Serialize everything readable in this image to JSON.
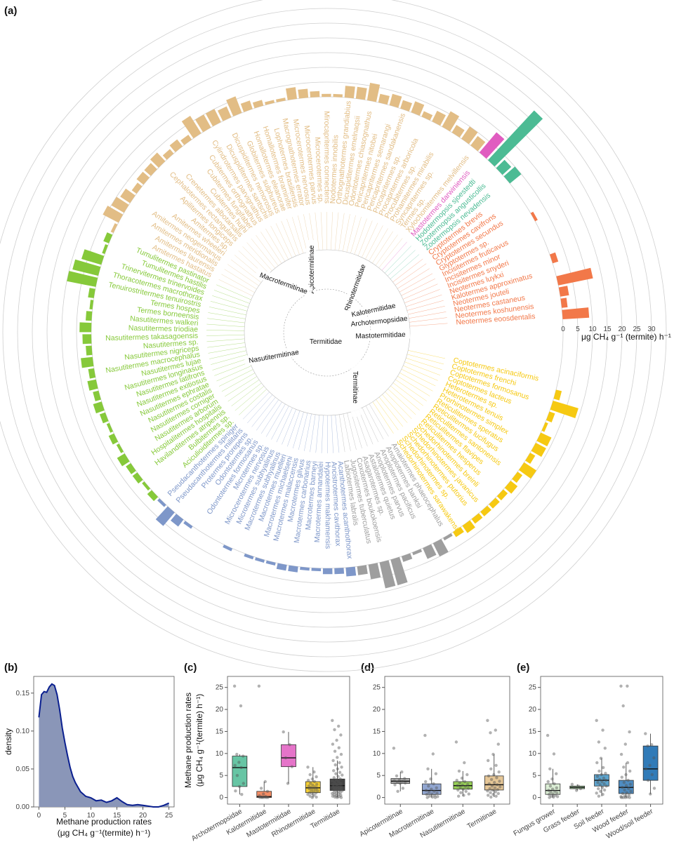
{
  "panels": {
    "a": "(a)",
    "b": "(b)",
    "c": "(c)",
    "d": "(d)",
    "e": "(e)"
  },
  "colors": {
    "Amaiteliinae_grey": "#9e9e9e",
    "Rhinotermitidae": "#f6c912",
    "Kalotermitidae": "#f27849",
    "Hodotermitidae": "#4cbb94",
    "Mastotermitidae": "#e05cc0",
    "Termitinae": "#e2bd85",
    "Nasutitermitinae": "#86c93a",
    "Macrotermitinae": "#7e97c9",
    "density_fill": "#8a96b8",
    "density_line": "#0a1f8f"
  },
  "circular": {
    "radial_axis_ticks": [
      "0",
      "5",
      "10",
      "15",
      "20",
      "25",
      "30"
    ],
    "radial_axis_label": "μg CH₄ g⁻¹ (termite) h⁻¹",
    "family_labels": [
      "Apicotermitinae",
      "Macrotermitinae",
      "Rhinotermitidae",
      "Kalotermitidae",
      "Archotermopsidae",
      "Mastotermitidae",
      "Termitidae",
      "Nasutitermitinae",
      "Termitinae"
    ],
    "groups": [
      {
        "key": "Kalotermitidae",
        "color": "#f27849",
        "species": [
          "Neotermes eoosdentalis",
          "Neotermes koshunensis",
          "Neotermes castaneus",
          "Neotermes jouteli",
          "Kalotermes approximatus",
          "Neotermes luykxi",
          "Incisitermes snyderi",
          "Incisitermes minor",
          "Incisitermes fruticavus",
          "Glyptotermes sp.",
          "Cryptotermes secundus",
          "Cryptotermes cavifrons",
          "Cryptotermes brevis"
        ],
        "values": [
          9,
          2,
          3,
          12,
          0,
          2,
          0,
          0,
          0,
          1,
          0,
          0,
          0
        ]
      },
      {
        "key": "Hodotermitidae",
        "color": "#4cbb94",
        "species": [
          "Zootermopsis nevadensis",
          "Zootermopsis angusticollis",
          "Hodotermopsis sjoestedti"
        ],
        "values": [
          5,
          4,
          23
        ]
      },
      {
        "key": "Mastotermitidae",
        "color": "#e05cc0",
        "species": [
          "Mastotermes darwiniensis"
        ],
        "values": [
          9
        ]
      },
      {
        "key": "Termitinae",
        "color": "#e2bd85",
        "species": [
          "Xylochomitermes melvillensis",
          "Termes sp.",
          "Syncapritermes sp.",
          "Prohamitermes mirabilis",
          "Procubitermes sp.",
          "Procapritermes arboricola",
          "Procapritermes sp.",
          "Pericapritermes sandakanensis",
          "Pericapritermes semarangi",
          "Pericapritermes nitobei",
          "Odontotermes chiasognathus",
          "Dicuspiditermes emelnaqsii",
          "Orthognathotermes grandiabius",
          "Nodotermes innobilis",
          "Mirocapritermes connectens",
          "Microcerotermes sp.",
          "Microcerotermes parvus",
          "Microcerotermes nervosus",
          "Macrognathotermes errator",
          "Lophotermes brasiliensis",
          "Homallotermes foraminifer",
          "Homallotermes eleanorae",
          "Globitermes sulphureus",
          "Dicuspiditermes nemorosus",
          "Dicuspiditermes santschii",
          "Cylindrotermes parvignathus",
          "Cubitermes orthognathus",
          "Cubitermes fungifaber",
          "Cubitermes hujhi",
          "Crenetermes albotarsalis",
          "Cephalotermes rectangularis",
          "Apilitermes longiceps",
          "Amitermes sp.",
          "Amitermes wheeleri",
          "Amitermes neogermanus",
          "Amitermes meridionalis",
          "Amitermes laurensis",
          "Amitermes hastatus"
        ],
        "values": [
          4,
          5,
          3,
          6,
          4,
          2,
          4,
          3,
          4,
          3,
          6,
          4,
          4,
          1,
          1,
          2,
          3,
          4,
          1,
          1,
          2,
          3,
          6,
          4,
          5,
          5,
          7,
          2,
          3,
          2,
          4,
          3,
          3,
          2,
          4,
          5,
          6,
          1
        ]
      },
      {
        "key": "Nasutitermitinae",
        "color": "#86c93a",
        "species": [
          "Tumulitermes pastinator",
          "Tumulitermes hastilis",
          "Trinervitermes trinervoides",
          "Thoracotermes macrothorax",
          "Tenuirostritermes tenuirostris",
          "Termes hospes",
          "Termes borneensis",
          "Nasutitermes walkeri",
          "Nasutitermes triodiae",
          "Nasutitermes takasagoensis",
          "Nasutitermes sp.",
          "Nasutitermes nigriceps",
          "Nasutitermes macrocephalus",
          "Nasutitermes lujae",
          "Nasutitermes longinasus",
          "Nasutitermes latifrons",
          "Nasutitermes exitiosus",
          "Nasutitermes ephratae",
          "Nasutitermes costalis",
          "Nasutitermes corniger",
          "Nasutitermes arborum",
          "Hospitalitermes hospitalis",
          "Havilanditermes atripennis",
          "Bulbitermes sp.",
          "Aciculioiditermes sp."
        ],
        "values": [
          2,
          1,
          7,
          9,
          10,
          2,
          1,
          2,
          4,
          3,
          2,
          4,
          2,
          3,
          2,
          3,
          2,
          1,
          2,
          1,
          3,
          2,
          2,
          1,
          2
        ]
      },
      {
        "key": "Macrotermitinae",
        "color": "#7e97c9",
        "species": [
          "Pseudacanthotermes spiniger",
          "Pseudacanthotermes militaris",
          "Protermes prorepens",
          "Odontotermes sp.",
          "Odontotermes formosanus",
          "Microtermes sp.",
          "Microcerotermes nervosus",
          "Microtermes subhyalinus",
          "Macrotermes subhyalinus",
          "Macrotermes muelleri",
          "Macrotermes michaelseni",
          "Macrotermes malaccensis",
          "Macrotermes gilvus",
          "Macrotermes carbonarius",
          "Macrotermes barneyi",
          "Macrotermes annandalei",
          "Hypotermes makhamensis",
          "Ancistrotermes cavithorax",
          "Acanthotermes acanthothorax"
        ],
        "values": [
          1,
          6,
          3,
          1,
          0,
          0,
          0,
          1,
          0,
          1,
          1,
          1,
          2,
          2,
          1,
          1,
          2,
          2,
          3
        ]
      },
      {
        "key": "Apicotermitinae",
        "color": "#9e9e9e",
        "species": [
          "Labiotermes labralis",
          "Jugositermes tuberculatus",
          "Coxotermes boukokoensis",
          "Asagarotermes sp.",
          "Astalotermes quietus",
          "Anoplotermes parvus",
          "Anoplotermes pacificus",
          "Anoplotermes banksi",
          "Amaiotermes phaeocephalus"
        ],
        "values": [
          3,
          5,
          9,
          9,
          2,
          1,
          4,
          5,
          1
        ]
      },
      {
        "key": "Rhinotermitidae",
        "color": "#f6c912",
        "species": [
          "Schedorhinotermes sarawakensis",
          "Schedorhinotermes sp.",
          "Schedorhinotermes putorius",
          "Schedorhinotermes javanicus",
          "Schedorhinotermes breinli",
          "Reticulitermes hesperus",
          "Reticulitermes flavipes",
          "Reticulitermes santonensis",
          "Reticulitermes lucifugus",
          "Reticulitermes speratus",
          "Prorhinotermes simplex",
          "Heterotermes tenuis",
          "Heterotermes sp.",
          "Coptotermes lacteus",
          "Coptotermes formosanus",
          "Coptotermes frenchi",
          "Coptotermes acinaciformis"
        ],
        "values": [
          2,
          3,
          2,
          2,
          2,
          2,
          3,
          2,
          5,
          2,
          4,
          4,
          1,
          2,
          9,
          2,
          0
        ]
      }
    ]
  },
  "chart_data": [
    {
      "panel": "b",
      "type": "area",
      "xlabel": "Methane production rates",
      "xlabel2": "(μg CH₄ g⁻¹(termite) h⁻¹)",
      "ylabel": "density",
      "xticks": [
        "0",
        "5",
        "10",
        "15",
        "20",
        "25"
      ],
      "yticks": [
        "0.00",
        "0.05",
        "0.10",
        "0.15"
      ],
      "xlim": [
        -1,
        26
      ],
      "ylim": [
        0,
        0.172
      ],
      "x": [
        0,
        0.5,
        1,
        1.5,
        2,
        2.5,
        3,
        3.5,
        4,
        4.5,
        5,
        5.5,
        6,
        6.5,
        7,
        8,
        9,
        10,
        11,
        12,
        13,
        14,
        15,
        16,
        17,
        18,
        19,
        20,
        21,
        22,
        23,
        24,
        25
      ],
      "y": [
        0.118,
        0.148,
        0.152,
        0.151,
        0.158,
        0.162,
        0.16,
        0.148,
        0.128,
        0.104,
        0.085,
        0.068,
        0.052,
        0.04,
        0.032,
        0.02,
        0.014,
        0.012,
        0.008,
        0.009,
        0.006,
        0.008,
        0.012,
        0.007,
        0.003,
        0.002,
        0.003,
        0.002,
        0.001,
        0.0,
        0.0,
        0.002,
        0.005
      ]
    },
    {
      "panel": "c",
      "type": "box",
      "ylabel": "Methane production rates",
      "ylabel2": "(μg CH₄ g⁻¹(termite) h⁻¹)",
      "ylim": [
        -1.5,
        27.5
      ],
      "yticks": [
        "0",
        "5",
        "10",
        "15",
        "20",
        "25"
      ],
      "categories": [
        "Archotermopsidae",
        "Kalotermitidae",
        "Mastotermitidae",
        "Rhinotermitidae",
        "Termitidae"
      ],
      "colors": [
        "#4cbb94",
        "#f27849",
        "#e05cc0",
        "#f6c912",
        "#222222"
      ],
      "boxes": [
        {
          "min": 0.7,
          "q1": 2.5,
          "median": 6.8,
          "q3": 9.4,
          "max": 9.8
        },
        {
          "min": 0.0,
          "q1": 0.0,
          "median": 0.2,
          "q3": 1.4,
          "max": 3.6
        },
        {
          "min": 3.2,
          "q1": 7.0,
          "median": 9.0,
          "q3": 12.0,
          "max": 14.9
        },
        {
          "min": 0.0,
          "q1": 1.1,
          "median": 2.2,
          "q3": 3.6,
          "max": 6.9
        },
        {
          "min": 0.0,
          "q1": 1.6,
          "median": 2.7,
          "q3": 4.2,
          "max": 8.4
        }
      ],
      "points": [
        [
          25.3,
          20.8,
          9.8,
          9.4,
          8.0,
          7.3,
          6.8,
          5.0,
          3.2,
          2.5,
          1.5,
          0.7
        ],
        [
          25.3,
          3.6,
          2.1,
          1.4,
          0.8,
          0.4,
          0.2,
          0.1,
          0.0,
          0.0,
          0.0,
          0.0,
          0.0
        ],
        [
          14.9,
          12.0,
          9.0,
          7.0,
          3.2
        ],
        [
          6.9,
          5.8,
          5.2,
          4.7,
          4.2,
          3.9,
          3.6,
          3.2,
          3.0,
          2.8,
          2.6,
          2.4,
          2.3,
          2.2,
          2.1,
          2.0,
          1.8,
          1.6,
          1.5,
          1.3,
          1.1,
          1.0,
          0.9,
          0.7,
          0.5,
          0.3,
          0.1,
          0.0
        ],
        [
          17.5,
          16.2,
          15.4,
          14.2,
          13.0,
          12.1,
          11.3,
          10.5,
          9.8,
          9.1,
          8.4,
          7.9,
          7.4,
          6.9,
          6.5,
          6.1,
          5.7,
          5.4,
          5.1,
          4.8,
          4.5,
          4.2,
          4.0,
          3.8,
          3.6,
          3.4,
          3.2,
          3.0,
          2.9,
          2.8,
          2.7,
          2.6,
          2.5,
          2.4,
          2.2,
          2.1,
          2.0,
          1.9,
          1.8,
          1.7,
          1.6,
          1.5,
          1.4,
          1.2,
          1.1,
          1.0,
          0.9,
          0.8,
          0.6,
          0.5,
          0.4,
          0.3,
          0.2,
          0.1,
          0.0,
          0.0
        ]
      ]
    },
    {
      "panel": "d",
      "type": "box",
      "ylim": [
        -1.5,
        27.5
      ],
      "yticks": [
        "0",
        "5",
        "10",
        "15",
        "20",
        "25"
      ],
      "categories": [
        "Apicotermitinae",
        "Macrotermitinae",
        "Nasutitermitinae",
        "Termitinae"
      ],
      "colors": [
        "#9e9e9e",
        "#7e97c9",
        "#86c93a",
        "#e2bd85"
      ],
      "boxes": [
        {
          "min": 1.4,
          "q1": 3.2,
          "median": 3.7,
          "q3": 4.3,
          "max": 5.8
        },
        {
          "min": 0.0,
          "q1": 0.7,
          "median": 1.6,
          "q3": 3.1,
          "max": 6.5
        },
        {
          "min": 0.3,
          "q1": 1.9,
          "median": 2.7,
          "q3": 3.6,
          "max": 6.0
        },
        {
          "min": 0.1,
          "q1": 1.7,
          "median": 2.9,
          "q3": 4.9,
          "max": 9.8
        }
      ],
      "points": [
        [
          11.2,
          5.8,
          4.9,
          4.3,
          4.0,
          3.8,
          3.7,
          3.5,
          3.3,
          3.2,
          2.9,
          2.1,
          1.4
        ],
        [
          14.1,
          9.9,
          6.5,
          5.4,
          4.2,
          3.6,
          3.1,
          2.6,
          2.2,
          1.9,
          1.6,
          1.4,
          1.2,
          1.0,
          0.8,
          0.7,
          0.5,
          0.3,
          0.2,
          0.1,
          0.0,
          0.0
        ],
        [
          12.6,
          7.9,
          6.0,
          5.2,
          4.4,
          3.9,
          3.6,
          3.3,
          3.0,
          2.8,
          2.7,
          2.5,
          2.3,
          2.1,
          1.9,
          1.7,
          1.4,
          1.1,
          0.8,
          0.5,
          0.3
        ],
        [
          17.5,
          15.3,
          14.7,
          12.1,
          9.8,
          8.4,
          7.3,
          6.5,
          5.8,
          5.2,
          4.9,
          4.5,
          4.1,
          3.7,
          3.4,
          3.1,
          2.9,
          2.6,
          2.4,
          2.2,
          2.0,
          1.8,
          1.7,
          1.5,
          1.3,
          1.1,
          0.9,
          0.7,
          0.5,
          0.3,
          0.1
        ]
      ]
    },
    {
      "panel": "e",
      "type": "box",
      "ylim": [
        -1.5,
        27.5
      ],
      "yticks": [
        "0",
        "5",
        "10",
        "15",
        "20",
        "25"
      ],
      "categories": [
        "Fungus grower",
        "Grass feeder",
        "Soil feeder",
        "Wood feeder",
        "Wood/soil feeder"
      ],
      "colors": [
        "#d6eccf",
        "#8fc88a",
        "#3f93c4",
        "#2f78b7",
        "#0d64ac"
      ],
      "boxes": [
        {
          "min": 0.0,
          "q1": 0.7,
          "median": 1.6,
          "q3": 3.1,
          "max": 6.5
        },
        {
          "min": 1.6,
          "q1": 2.0,
          "median": 2.3,
          "q3": 2.6,
          "max": 3.0
        },
        {
          "min": 0.3,
          "q1": 2.6,
          "median": 3.9,
          "q3": 5.2,
          "max": 8.9
        },
        {
          "min": 0.0,
          "q1": 0.9,
          "median": 2.3,
          "q3": 3.9,
          "max": 7.9
        },
        {
          "min": 0.8,
          "q1": 3.9,
          "median": 6.5,
          "q3": 11.7,
          "max": 14.5
        }
      ],
      "points": [
        [
          14.1,
          9.9,
          6.5,
          5.4,
          4.2,
          3.6,
          3.1,
          2.6,
          2.2,
          1.9,
          1.6,
          1.4,
          1.2,
          1.0,
          0.8,
          0.7,
          0.5,
          0.3,
          0.2,
          0.1,
          0.0
        ],
        [
          3.0,
          2.6,
          2.3,
          2.0,
          1.6
        ],
        [
          17.5,
          15.3,
          12.6,
          11.2,
          8.9,
          7.9,
          6.8,
          6.0,
          5.5,
          5.2,
          4.8,
          4.4,
          4.1,
          3.9,
          3.6,
          3.4,
          3.1,
          2.9,
          2.6,
          2.3,
          2.0,
          1.7,
          1.4,
          1.0,
          0.7,
          0.3
        ],
        [
          25.3,
          25.3,
          20.8,
          14.9,
          12.1,
          9.8,
          7.9,
          6.9,
          6.0,
          5.2,
          4.6,
          3.9,
          3.4,
          3.0,
          2.7,
          2.3,
          2.0,
          1.7,
          1.4,
          1.1,
          0.9,
          0.6,
          0.4,
          0.2,
          0.1,
          0.0,
          0.0,
          0.0,
          0.0
        ],
        [
          14.5,
          12.0,
          11.7,
          9.0,
          7.3,
          6.5,
          5.2,
          3.9,
          2.1,
          0.8
        ]
      ]
    }
  ]
}
